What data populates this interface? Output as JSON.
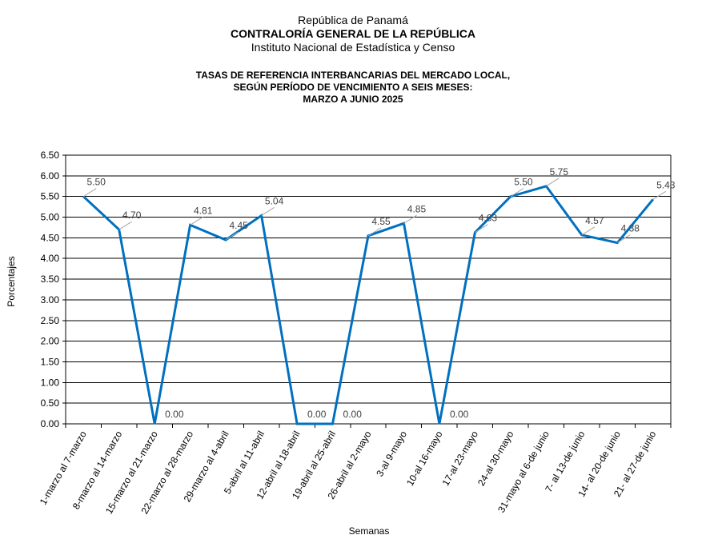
{
  "header": {
    "country": "República de Panamá",
    "institution": "CONTRALORÍA GENERAL DE LA REPÚBLICA",
    "institute": "Instituto Nacional de Estadística y Censo"
  },
  "chart_data": {
    "type": "line",
    "title_lines": [
      "TASAS DE REFERENCIA INTERBANCARIAS DEL MERCADO LOCAL,",
      "SEGÚN PERÍODO DE VENCIMIENTO A SEIS MESES:",
      "MARZO A JUNIO 2025"
    ],
    "xlabel": "Semanas",
    "ylabel": "Porcentajes",
    "ylim": [
      0,
      6.5
    ],
    "ytick_step": 0.5,
    "yticks": [
      "0.00",
      "0.50",
      "1.00",
      "1.50",
      "2.00",
      "2.50",
      "3.00",
      "3.50",
      "4.00",
      "4.50",
      "5.00",
      "5.50",
      "6.00",
      "6.50"
    ],
    "grid": true,
    "legend": "none",
    "line_color": "#0070C0",
    "categories": [
      "1-marzo al 7-marzo",
      "8-marzo al 14-marzo",
      "15-marzo al 21-marzo",
      "22-marzo al 28-marzo",
      "29-marzo al 4-abril",
      "5-abril al 11-abril",
      "12-abril al 18-abril",
      "19-abril al 25-abril",
      "26-abril al 2-mayo",
      "3-al 9-mayo",
      "10-al 16-mayo",
      "17-al 23-mayo",
      "24-al 30-mayo",
      "31-mayo al 6-de junio",
      "7- al 13-de junio",
      "14- al 20-de junio",
      "21- al 27-de junio"
    ],
    "values": [
      5.5,
      4.7,
      0.0,
      4.81,
      4.45,
      5.04,
      0.0,
      0.0,
      4.55,
      4.85,
      0.0,
      4.63,
      5.5,
      5.75,
      4.57,
      4.38,
      5.43
    ],
    "value_labels": [
      "5.50",
      "4.70",
      "0.00",
      "4.81",
      "4.45",
      "5.04",
      "0.00",
      "0.00",
      "4.55",
      "4.85",
      "0.00",
      "4.63",
      "5.50",
      "5.75",
      "4.57",
      "4.38",
      "5.43"
    ]
  }
}
